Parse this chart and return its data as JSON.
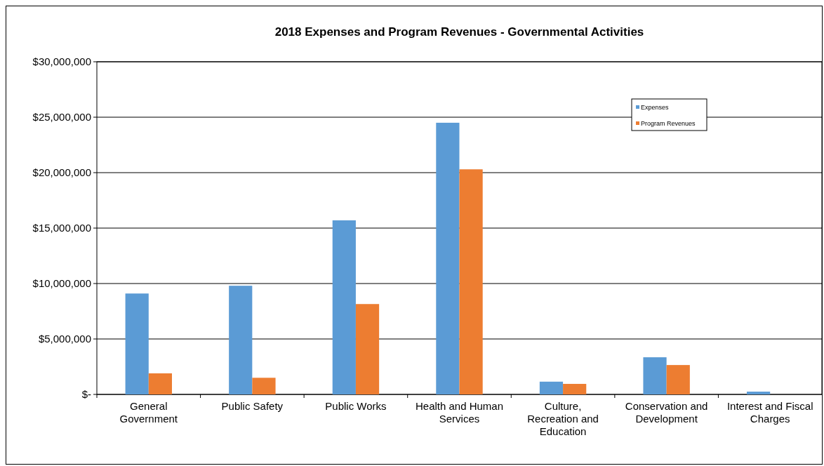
{
  "chart_data": {
    "type": "bar",
    "title": "2018 Expenses and Program Revenues - Governmental Activities",
    "categories": [
      "General Government",
      "Public Safety",
      "Public Works",
      "Health and Human Services",
      "Culture, Recreation and Education",
      "Conservation and Development",
      "Interest and Fiscal Charges"
    ],
    "series": [
      {
        "name": "Expenses",
        "color": "#5b9bd5",
        "values": [
          9100000,
          9800000,
          15700000,
          24500000,
          1150000,
          3350000,
          250000
        ]
      },
      {
        "name": "Program Revenues",
        "color": "#ed7d31",
        "values": [
          1900000,
          1500000,
          8150000,
          20300000,
          950000,
          2650000,
          0
        ]
      }
    ],
    "ylim": [
      0,
      30000000
    ],
    "yticks": [
      {
        "value": 0,
        "label": "$-"
      },
      {
        "value": 5000000,
        "label": "$5,000,000"
      },
      {
        "value": 10000000,
        "label": "$10,000,000"
      },
      {
        "value": 15000000,
        "label": "$15,000,000"
      },
      {
        "value": 20000000,
        "label": "$20,000,000"
      },
      {
        "value": 25000000,
        "label": "$25,000,000"
      },
      {
        "value": 30000000,
        "label": "$30,000,000"
      }
    ],
    "grid": "y",
    "legend": "top right"
  }
}
